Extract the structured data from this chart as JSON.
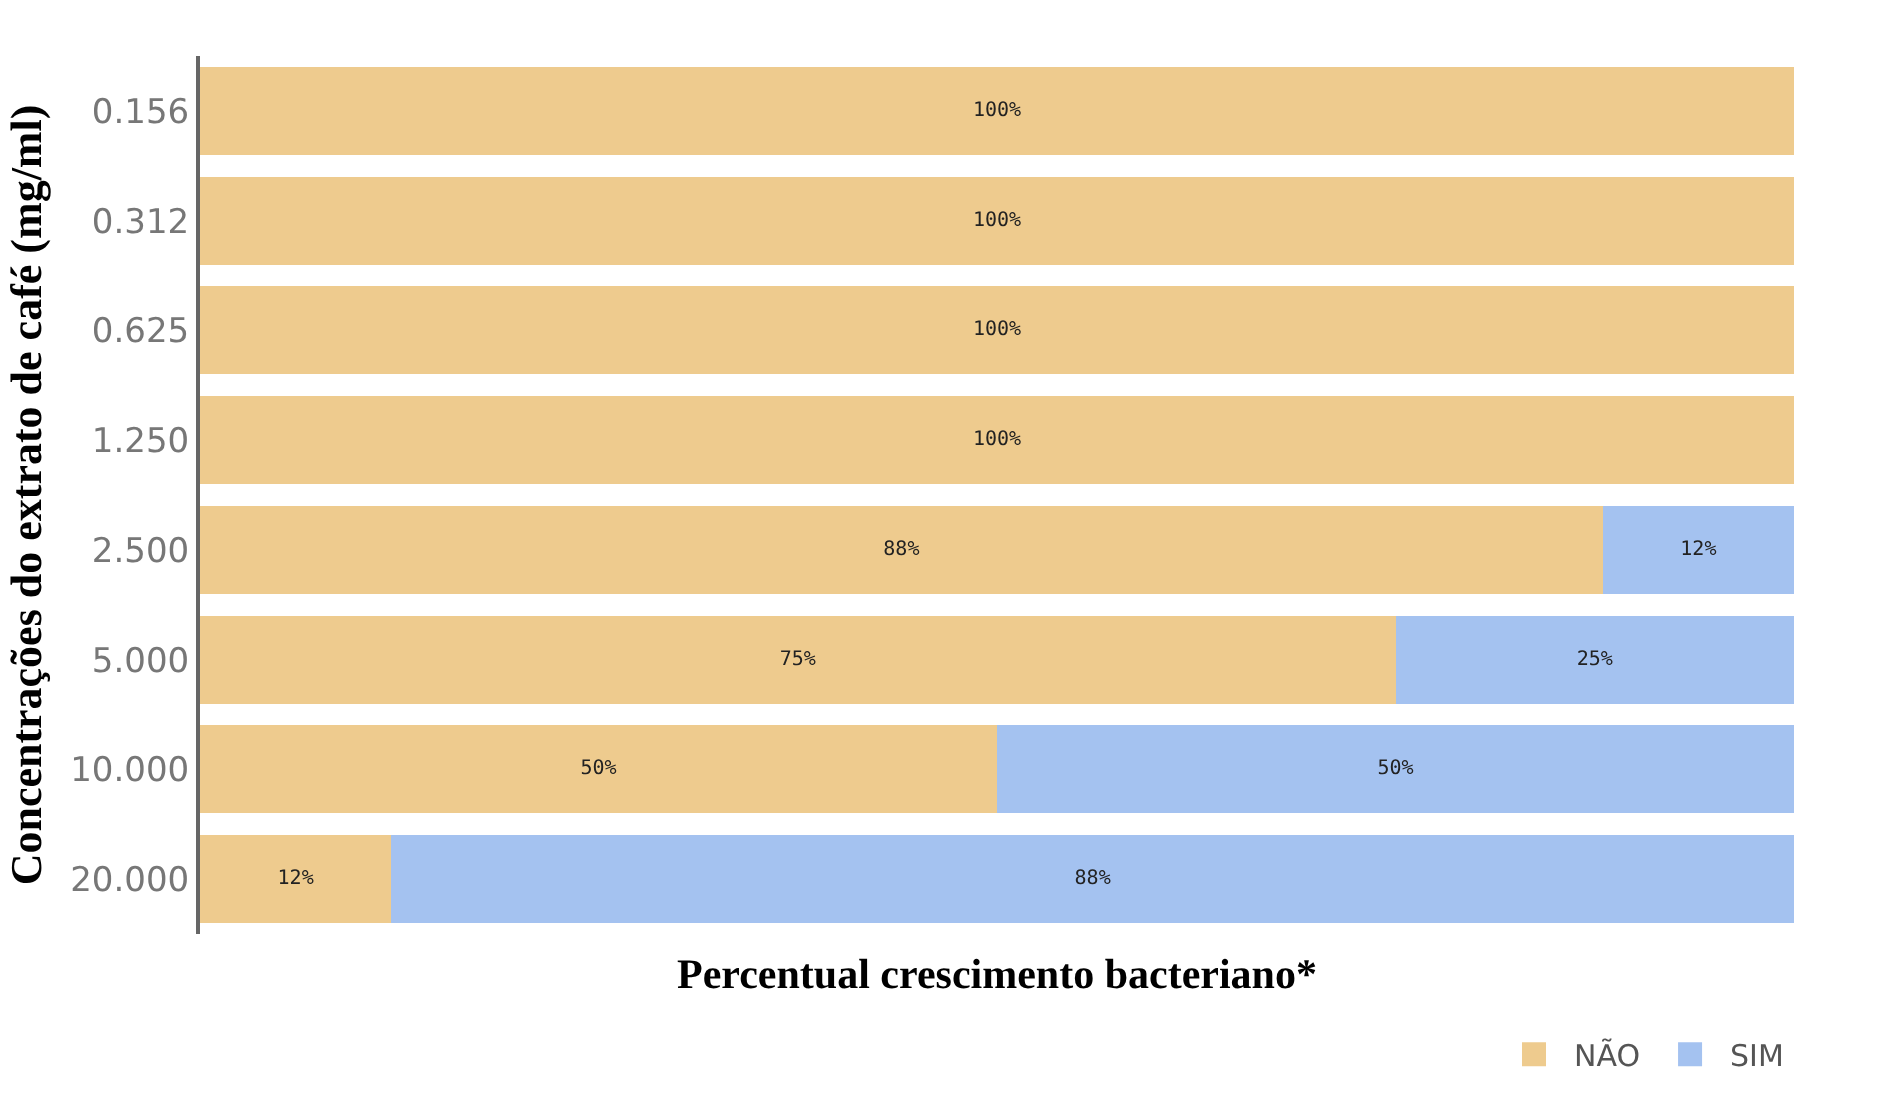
{
  "chart_data": {
    "type": "bar",
    "orientation": "horizontal",
    "stacked": true,
    "xlabel": "Percentual crescimento bacteriano*",
    "ylabel": "Concentrações do extrato de café (mg/ml)",
    "categories": [
      "0.156",
      "0.312",
      "0.625",
      "1.250",
      "2.500",
      "5.000",
      "10.000",
      "20.000"
    ],
    "series": [
      {
        "name": "NÃO",
        "color": "#eecb8e",
        "values": [
          100,
          100,
          100,
          100,
          88,
          75,
          50,
          12
        ],
        "value_labels": [
          "100%",
          "100%",
          "100%",
          "100%",
          "88%",
          "75%",
          "50%",
          "12%"
        ]
      },
      {
        "name": "SIM",
        "color": "#a4c2f0",
        "values": [
          0,
          0,
          0,
          0,
          12,
          25,
          50,
          88
        ],
        "value_labels": [
          null,
          null,
          null,
          null,
          "12%",
          "25%",
          "50%",
          "88%"
        ]
      }
    ],
    "xlim": [
      0,
      100
    ],
    "tick_labels": "y",
    "legend": "bottom right"
  }
}
